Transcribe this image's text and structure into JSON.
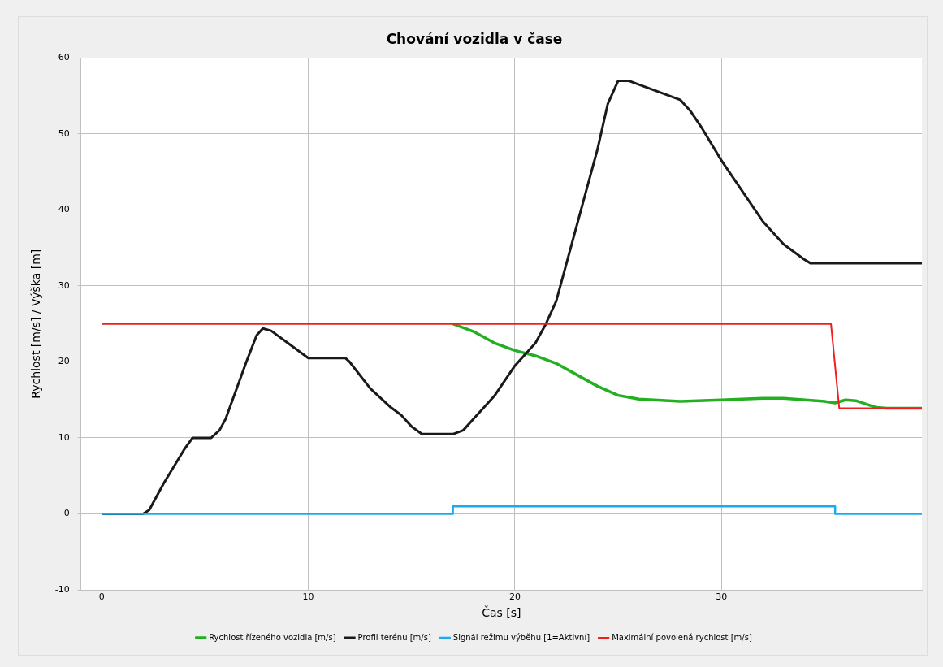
{
  "chart_data": {
    "type": "line",
    "title": "Chování vozidla v čase",
    "xlabel": "Čas [s]",
    "ylabel": "Rychlost [m/s] / Výška [m]",
    "xlim": [
      -1,
      39.7
    ],
    "xticks": [
      0,
      10,
      20,
      30
    ],
    "ylim": [
      -10,
      60
    ],
    "yticks": [
      -10,
      0,
      10,
      20,
      30,
      40,
      50,
      60
    ],
    "grid": true,
    "legend": "bottom",
    "marker": "none",
    "line_style": "solid",
    "series": [
      {
        "name": "Rychlost řízeného vozidla [m/s]",
        "color": "#22b022",
        "x": [
          17,
          18,
          19,
          20,
          21,
          22,
          23,
          24,
          25,
          26,
          28,
          30,
          32,
          33,
          35,
          35.5,
          36,
          36.5,
          37.5,
          38,
          39.7
        ],
        "values": [
          25,
          24,
          22.5,
          21.5,
          20.8,
          19.8,
          18.3,
          16.8,
          15.6,
          15.1,
          14.8,
          15,
          15.2,
          15.2,
          14.8,
          14.6,
          15,
          14.9,
          14,
          13.9,
          13.9
        ]
      },
      {
        "name": "Profil terénu [m/s]",
        "color": "#1a1a1a",
        "x": [
          0,
          2,
          2.3,
          3,
          4,
          4.4,
          5.3,
          5.7,
          6,
          7,
          7.5,
          7.8,
          8.2,
          9,
          10,
          11.8,
          12,
          13,
          14,
          14.5,
          15,
          15.5,
          17,
          17.5,
          18,
          19,
          20,
          21,
          21.5,
          22,
          23,
          24,
          24.5,
          25,
          25.5,
          28,
          28.5,
          29,
          30,
          32,
          33,
          34,
          34.3,
          39.7
        ],
        "values": [
          0,
          0,
          0.5,
          4,
          8.5,
          10,
          10,
          11,
          12.5,
          20,
          23.5,
          24.4,
          24.1,
          22.5,
          20.5,
          20.5,
          20,
          16.5,
          14,
          13,
          11.5,
          10.5,
          10.5,
          11,
          12.5,
          15.5,
          19.5,
          22.5,
          25,
          28,
          38,
          48,
          54,
          57,
          57,
          54.5,
          53,
          51,
          46.5,
          38.5,
          35.5,
          33.5,
          33,
          33
        ]
      },
      {
        "name": "Signál režimu výběhu [1=Aktivní]",
        "color": "#1aaaf0",
        "x": [
          0,
          17,
          17,
          35.5,
          35.5,
          39.7
        ],
        "values": [
          0,
          0,
          1,
          1,
          0,
          0
        ]
      },
      {
        "name": "Maximální povolená rychlost [m/s]",
        "color": "#f01e1e",
        "x": [
          0,
          35.3,
          35.7,
          39.7
        ],
        "values": [
          25,
          25,
          13.9,
          13.9
        ]
      }
    ]
  }
}
